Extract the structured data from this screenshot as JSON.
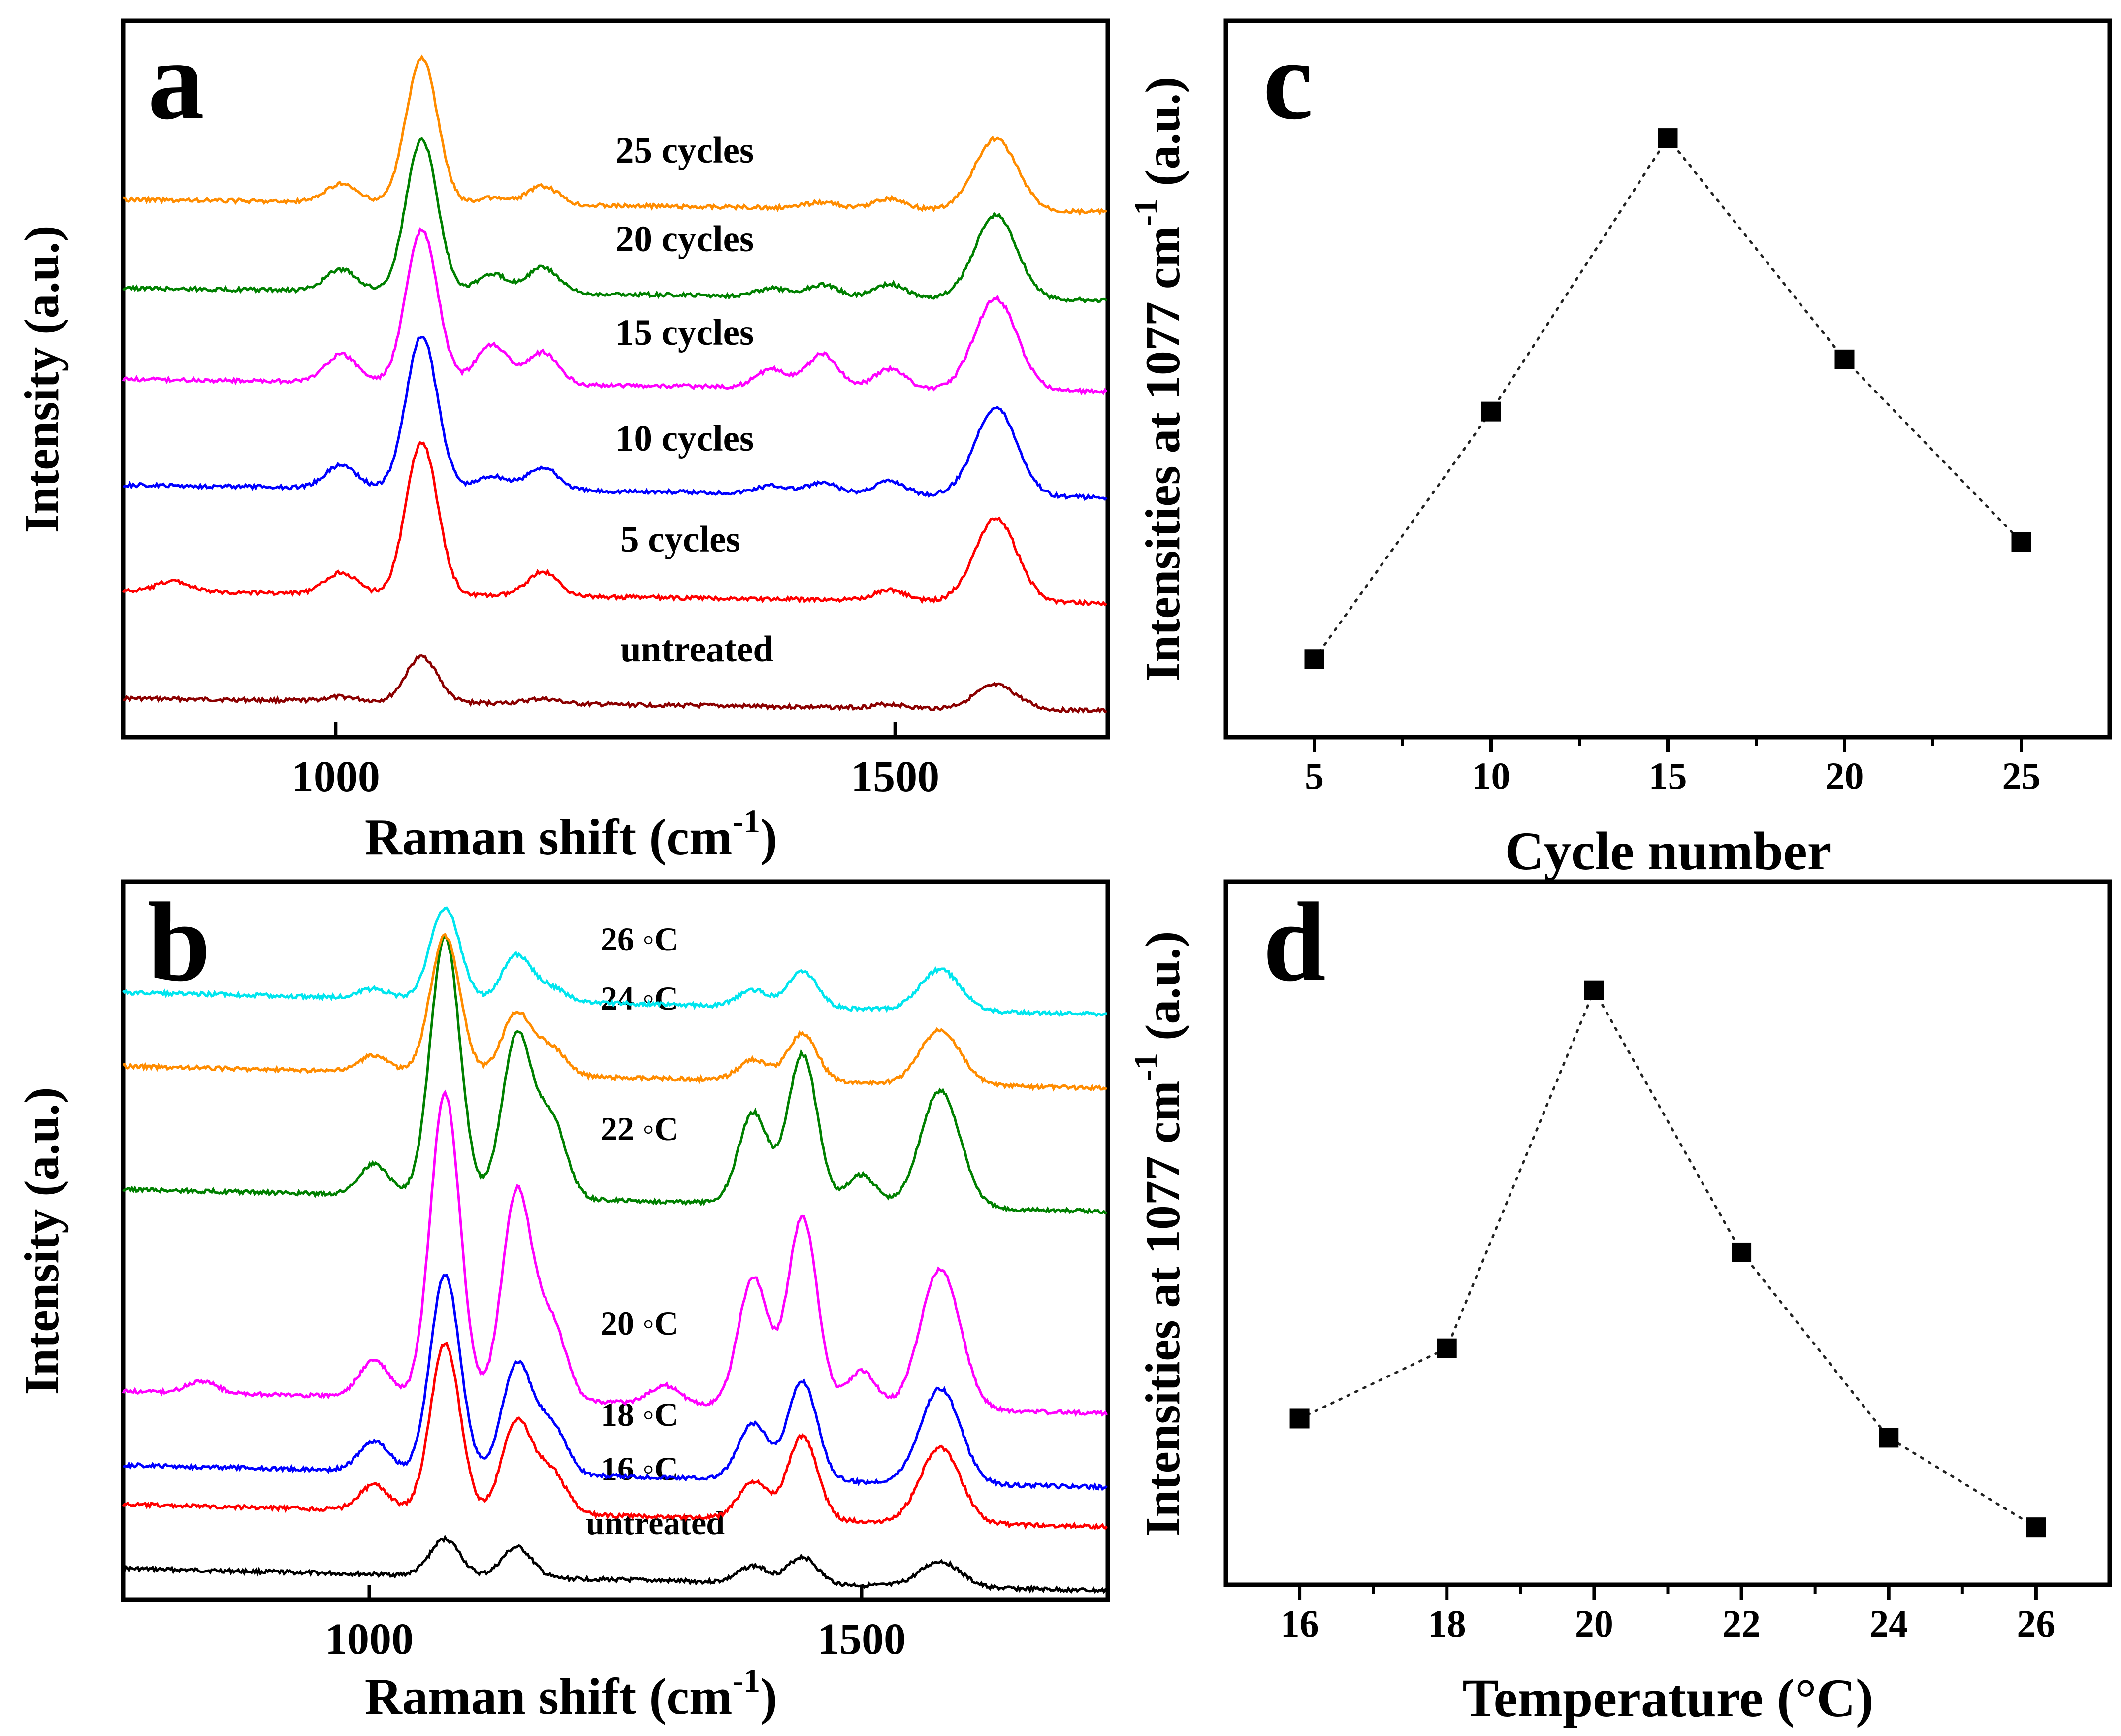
{
  "chart_data": [
    {
      "panel": "a",
      "type": "line",
      "xlabel": "Raman shift (cm",
      "xlabel_sup": "-1",
      "xlabel_close": ")",
      "ylabel": "Intensity (a.u.)",
      "xlim": [
        810,
        1690
      ],
      "xticks": [
        1000,
        1500
      ],
      "yticks": false,
      "series": [
        {
          "name": "untreated",
          "color": "#8b0000",
          "scale": 0.35,
          "peaks": [
            [
              1005,
              0.08
            ],
            [
              1077,
              0.85
            ],
            [
              1185,
              0.09
            ],
            [
              1495,
              0.07
            ],
            [
              1590,
              0.45
            ]
          ]
        },
        {
          "name": "5 cycles",
          "color": "#ff0000",
          "scale": 1.0,
          "peaks": [
            [
              855,
              0.07
            ],
            [
              1005,
              0.14
            ],
            [
              1077,
              1.0
            ],
            [
              1185,
              0.16
            ],
            [
              1495,
              0.07
            ],
            [
              1590,
              0.55
            ]
          ]
        },
        {
          "name": "10 cycles",
          "color": "#0000ff",
          "scale": 1.0,
          "peaks": [
            [
              1005,
              0.15
            ],
            [
              1077,
              1.0
            ],
            [
              1140,
              0.09
            ],
            [
              1185,
              0.15
            ],
            [
              1390,
              0.05
            ],
            [
              1435,
              0.07
            ],
            [
              1495,
              0.09
            ],
            [
              1590,
              0.58
            ]
          ]
        },
        {
          "name": "15 cycles",
          "color": "#ff00ff",
          "scale": 1.0,
          "peaks": [
            [
              1005,
              0.18
            ],
            [
              1077,
              1.0
            ],
            [
              1140,
              0.26
            ],
            [
              1185,
              0.21
            ],
            [
              1390,
              0.12
            ],
            [
              1435,
              0.22
            ],
            [
              1495,
              0.13
            ],
            [
              1590,
              0.6
            ]
          ]
        },
        {
          "name": "20 cycles",
          "color": "#008000",
          "scale": 1.0,
          "peaks": [
            [
              1005,
              0.14
            ],
            [
              1077,
              1.0
            ],
            [
              1140,
              0.12
            ],
            [
              1185,
              0.17
            ],
            [
              1390,
              0.05
            ],
            [
              1435,
              0.08
            ],
            [
              1495,
              0.09
            ],
            [
              1590,
              0.55
            ]
          ]
        },
        {
          "name": "25 cycles",
          "color": "#ff8c00",
          "scale": 1.0,
          "peaks": [
            [
              1005,
              0.12
            ],
            [
              1077,
              0.95
            ],
            [
              1140,
              0.04
            ],
            [
              1185,
              0.12
            ],
            [
              1435,
              0.04
            ],
            [
              1495,
              0.07
            ],
            [
              1590,
              0.47
            ]
          ]
        }
      ]
    },
    {
      "panel": "b",
      "type": "line",
      "xlabel": "Raman shift (cm",
      "xlabel_sup": "-1",
      "xlabel_close": ")",
      "ylabel": "Intensity (a.u.)",
      "xlim": [
        750,
        1750
      ],
      "xticks": [
        1000,
        1500
      ],
      "yticks": false,
      "series": [
        {
          "name": "untreated",
          "color": "#000000",
          "scale": 0.22,
          "peaks": [
            [
              1077,
              0.55
            ],
            [
              1150,
              0.45
            ],
            [
              1390,
              0.25
            ],
            [
              1440,
              0.4
            ],
            [
              1580,
              0.38
            ]
          ]
        },
        {
          "name": "16 ◦C",
          "color": "#ff0000",
          "scale": 0.55,
          "peaks": [
            [
              1005,
              0.15
            ],
            [
              1077,
              1.0
            ],
            [
              1150,
              0.55
            ],
            [
              1185,
              0.25
            ],
            [
              1390,
              0.22
            ],
            [
              1440,
              0.5
            ],
            [
              1580,
              0.45
            ]
          ]
        },
        {
          "name": "18 ◦C",
          "color": "#0000ff",
          "scale": 0.65,
          "peaks": [
            [
              1005,
              0.15
            ],
            [
              1077,
              1.0
            ],
            [
              1150,
              0.55
            ],
            [
              1185,
              0.25
            ],
            [
              1390,
              0.28
            ],
            [
              1440,
              0.5
            ],
            [
              1580,
              0.48
            ]
          ]
        },
        {
          "name": "20 ◦C",
          "color": "#ff00ff",
          "scale": 1.0,
          "peaks": [
            [
              830,
              0.04
            ],
            [
              1005,
              0.12
            ],
            [
              1077,
              1.0
            ],
            [
              1150,
              0.68
            ],
            [
              1185,
              0.25
            ],
            [
              1300,
              0.06
            ],
            [
              1390,
              0.42
            ],
            [
              1440,
              0.62
            ],
            [
              1500,
              0.12
            ],
            [
              1580,
              0.46
            ]
          ]
        },
        {
          "name": "22 ◦C",
          "color": "#008000",
          "scale": 0.85,
          "peaks": [
            [
              1005,
              0.12
            ],
            [
              1077,
              1.0
            ],
            [
              1150,
              0.62
            ],
            [
              1185,
              0.3
            ],
            [
              1390,
              0.35
            ],
            [
              1440,
              0.58
            ],
            [
              1500,
              0.12
            ],
            [
              1580,
              0.45
            ]
          ]
        },
        {
          "name": "24 ◦C",
          "color": "#ff8c00",
          "scale": 0.45,
          "peaks": [
            [
              1005,
              0.12
            ],
            [
              1077,
              1.0
            ],
            [
              1150,
              0.45
            ],
            [
              1185,
              0.2
            ],
            [
              1390,
              0.15
            ],
            [
              1440,
              0.35
            ],
            [
              1580,
              0.4
            ]
          ]
        },
        {
          "name": "26 ◦C",
          "color": "#00e5ee",
          "scale": 0.3,
          "peaks": [
            [
              1005,
              0.1
            ],
            [
              1077,
              1.0
            ],
            [
              1150,
              0.5
            ],
            [
              1185,
              0.15
            ],
            [
              1390,
              0.18
            ],
            [
              1440,
              0.4
            ],
            [
              1580,
              0.45
            ]
          ]
        }
      ]
    },
    {
      "panel": "c",
      "type": "scatter",
      "xlabel": "Cycle number",
      "ylabel": "Intensities at 1077 cm",
      "ylabel_sup": "-1",
      "ylabel_close": " (a.u.)",
      "xlim": [
        2.5,
        27.5
      ],
      "xticks": [
        5,
        10,
        15,
        20,
        25
      ],
      "ylim": [
        0,
        1.1
      ],
      "x": [
        5,
        10,
        15,
        20,
        25
      ],
      "y": [
        0.12,
        0.5,
        0.92,
        0.58,
        0.3
      ],
      "line_style": "dotted"
    },
    {
      "panel": "d",
      "type": "scatter",
      "xlabel": "Temperature (°C)",
      "ylabel": "Intensities at 1077 cm",
      "ylabel_sup": "-1",
      "ylabel_close": " (a.u.)",
      "xlim": [
        15,
        27
      ],
      "xticks": [
        16,
        18,
        20,
        22,
        24,
        26
      ],
      "ylim": [
        0,
        1.1
      ],
      "x": [
        16,
        18,
        20,
        22,
        24,
        26
      ],
      "y": [
        0.26,
        0.37,
        0.93,
        0.52,
        0.23,
        0.09
      ],
      "line_style": "dotted"
    }
  ]
}
